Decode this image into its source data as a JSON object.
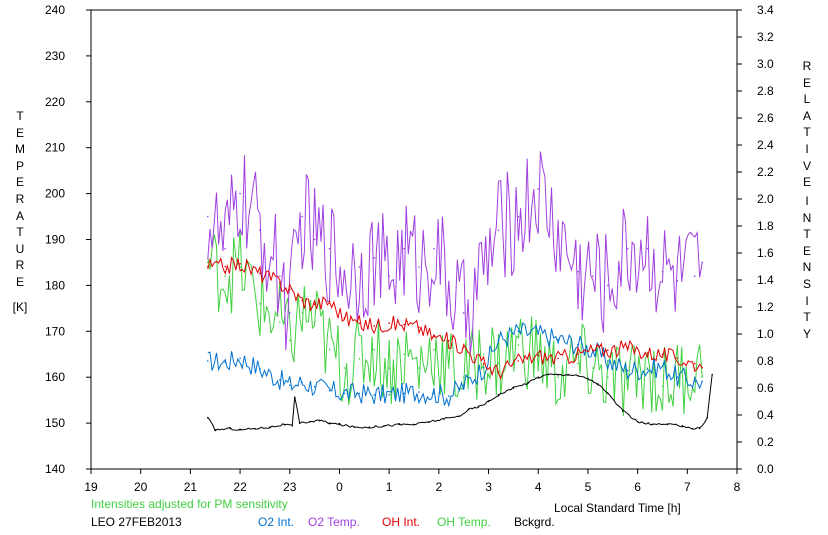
{
  "chart_data": {
    "type": "line",
    "title": "",
    "xlabel": "Local Standard Time [h]",
    "ylabel_left": "TEMPERATURE [K]",
    "ylabel_right": "RELATIVE INTENSITY",
    "xlim": [
      19,
      32
    ],
    "x_ticks": [
      19,
      20,
      21,
      22,
      23,
      24,
      25,
      26,
      27,
      28,
      29,
      30,
      31,
      32
    ],
    "x_tick_labels": [
      "19",
      "20",
      "21",
      "22",
      "23",
      "0",
      "1",
      "2",
      "3",
      "4",
      "5",
      "6",
      "7",
      "8"
    ],
    "ylim_left": [
      140,
      240
    ],
    "y_left_ticks": [
      140,
      150,
      160,
      170,
      180,
      190,
      200,
      210,
      220,
      230,
      240
    ],
    "ylim_right": [
      0.0,
      3.4
    ],
    "y_right_ticks": [
      "0.0",
      "0.2",
      "0.4",
      "0.6",
      "0.8",
      "1.0",
      "1.2",
      "1.4",
      "1.6",
      "1.8",
      "2.0",
      "2.2",
      "2.4",
      "2.6",
      "2.8",
      "3.0",
      "3.2",
      "3.4"
    ],
    "grid": false,
    "legend_position": "bottom",
    "series": [
      {
        "name": "O2 Int.",
        "axis": "right",
        "color": "#0070d0",
        "x": [
          21.35,
          21.7,
          22.0,
          22.4,
          22.8,
          23.0,
          23.25,
          23.5,
          23.8,
          24.1,
          24.4,
          24.7,
          25.0,
          25.3,
          25.6,
          25.9,
          26.2,
          26.5,
          26.9,
          27.2,
          27.6,
          28.0,
          28.4,
          28.8,
          29.1,
          29.4,
          29.8,
          30.2,
          30.5,
          30.8,
          31.15,
          31.3
        ],
        "y": [
          0.8,
          0.79,
          0.82,
          0.74,
          0.66,
          0.62,
          0.64,
          0.61,
          0.58,
          0.56,
          0.56,
          0.55,
          0.55,
          0.56,
          0.57,
          0.56,
          0.54,
          0.62,
          0.75,
          0.95,
          1.02,
          1.0,
          0.96,
          0.92,
          0.88,
          0.8,
          0.73,
          0.74,
          0.76,
          0.68,
          0.65,
          0.65
        ]
      },
      {
        "name": "O2 Temp.",
        "axis": "left",
        "color": "#a040e0",
        "x": [
          21.35,
          21.7,
          22.0,
          22.4,
          22.8,
          23.0,
          23.25,
          23.5,
          23.8,
          24.1,
          24.4,
          24.7,
          25.0,
          25.3,
          25.6,
          25.9,
          26.2,
          26.5,
          26.9,
          27.2,
          27.6,
          28.0,
          28.4,
          28.8,
          29.1,
          29.4,
          29.8,
          30.2,
          30.5,
          30.8,
          31.15,
          31.3
        ],
        "y": [
          195,
          188,
          200,
          192,
          182,
          174,
          195,
          190,
          188,
          183,
          184,
          186,
          182,
          188,
          184,
          188,
          180,
          174,
          183,
          192,
          195,
          201,
          191,
          183,
          182,
          180,
          188,
          188,
          183,
          181,
          182,
          185
        ]
      },
      {
        "name": "OH Int.",
        "axis": "right",
        "color": "#e00000",
        "x": [
          21.35,
          21.7,
          22.0,
          22.4,
          22.8,
          23.0,
          23.25,
          23.5,
          23.8,
          24.1,
          24.4,
          24.7,
          25.0,
          25.3,
          25.6,
          25.9,
          26.2,
          26.5,
          26.9,
          27.2,
          27.6,
          28.0,
          28.4,
          28.8,
          29.1,
          29.4,
          29.8,
          30.2,
          30.5,
          30.8,
          31.15,
          31.3
        ],
        "y": [
          1.5,
          1.5,
          1.52,
          1.45,
          1.38,
          1.33,
          1.25,
          1.22,
          1.24,
          1.12,
          1.08,
          1.06,
          1.08,
          1.07,
          1.05,
          0.98,
          0.95,
          0.9,
          0.78,
          0.72,
          0.8,
          0.84,
          0.82,
          0.85,
          0.88,
          0.88,
          0.9,
          0.86,
          0.85,
          0.82,
          0.78,
          0.75
        ]
      },
      {
        "name": "OH Temp.",
        "axis": "left",
        "color": "#40d040",
        "x": [
          21.35,
          21.7,
          22.0,
          22.4,
          22.8,
          23.0,
          23.25,
          23.5,
          23.8,
          24.1,
          24.4,
          24.7,
          25.0,
          25.3,
          25.6,
          25.9,
          26.2,
          26.5,
          26.9,
          27.2,
          27.6,
          28.0,
          28.4,
          28.8,
          29.1,
          29.4,
          29.8,
          30.2,
          30.5,
          30.8,
          31.15,
          31.3
        ],
        "y": [
          185,
          182,
          184,
          176,
          172,
          168,
          174,
          172,
          166,
          162,
          164,
          166,
          162,
          165,
          162,
          166,
          162,
          160,
          165,
          163,
          167,
          165,
          160,
          163,
          162,
          160,
          158,
          162,
          158,
          160,
          162,
          160
        ]
      },
      {
        "name": "Bckgrd.",
        "axis": "right",
        "color": "#000000",
        "x": [
          21.35,
          21.5,
          21.8,
          22.0,
          22.3,
          22.6,
          22.9,
          23.05,
          23.1,
          23.2,
          23.4,
          23.6,
          23.8,
          24.0,
          24.3,
          24.6,
          24.9,
          25.2,
          25.5,
          25.8,
          26.1,
          26.4,
          26.6,
          26.8,
          27.0,
          27.2,
          27.5,
          27.8,
          28.0,
          28.2,
          28.4,
          28.6,
          28.8,
          29.0,
          29.2,
          29.4,
          29.7,
          30.0,
          30.3,
          30.6,
          30.9,
          31.1,
          31.25,
          31.4,
          31.5
        ],
        "y": [
          0.38,
          0.29,
          0.3,
          0.29,
          0.3,
          0.31,
          0.33,
          0.32,
          0.53,
          0.34,
          0.35,
          0.36,
          0.34,
          0.33,
          0.31,
          0.31,
          0.32,
          0.33,
          0.33,
          0.35,
          0.37,
          0.39,
          0.44,
          0.46,
          0.5,
          0.55,
          0.6,
          0.64,
          0.68,
          0.7,
          0.7,
          0.7,
          0.69,
          0.67,
          0.63,
          0.56,
          0.43,
          0.35,
          0.33,
          0.33,
          0.32,
          0.3,
          0.3,
          0.38,
          0.7
        ]
      }
    ]
  },
  "labels": {
    "left_axis_letters": "TEMPERATURE",
    "left_axis_unit": "[K]",
    "right_axis_letters_1": "RELATIVE",
    "right_axis_letters_2": "INTENSITY",
    "note": "Intensities adjusted for PM sensitivity",
    "station": "LEO 27FEB2013"
  },
  "colors": {
    "note": "#40d040"
  }
}
